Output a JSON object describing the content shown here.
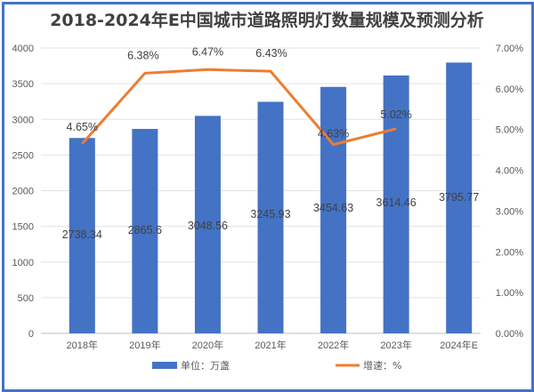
{
  "chart_data": {
    "type": "bar+line",
    "title": "2018-2024年E中国城市道路照明灯数量规模及预测分析",
    "categories": [
      "2018年",
      "2019年",
      "2020年",
      "2021年",
      "2022年",
      "2023年",
      "2024年E"
    ],
    "series": [
      {
        "name": "单位：万盏",
        "type": "bar",
        "axis": "left",
        "color": "#4472c4",
        "values": [
          2738.34,
          2865.6,
          3048.56,
          3245.93,
          3454.63,
          3614.46,
          3795.77
        ],
        "labels": [
          "2738.34",
          "2865.6",
          "3048.56",
          "3245.93",
          "3454.63",
          "3614.46",
          "3795.77"
        ]
      },
      {
        "name": "增速：%",
        "type": "line",
        "axis": "right",
        "color": "#ed7d31",
        "values": [
          4.65,
          6.38,
          6.47,
          6.43,
          4.63,
          5.02,
          null
        ],
        "labels": [
          "4.65%",
          "6.38%",
          "6.47%",
          "6.43%",
          "4.63%",
          "5.02%",
          ""
        ]
      }
    ],
    "y_left": {
      "min": 0,
      "max": 4000,
      "step": 500,
      "ticks": [
        "0",
        "500",
        "1000",
        "1500",
        "2000",
        "2500",
        "3000",
        "3500",
        "4000"
      ]
    },
    "y_right": {
      "min": 0,
      "max": 7,
      "step": 1,
      "ticks": [
        "0.00%",
        "1.00%",
        "2.00%",
        "3.00%",
        "4.00%",
        "5.00%",
        "6.00%",
        "7.00%"
      ]
    },
    "xlabel": "",
    "ylabel": "",
    "grid": true,
    "legend_position": "bottom"
  },
  "legend": {
    "bar_label": "单位：万盏",
    "line_label": "增速：%"
  }
}
